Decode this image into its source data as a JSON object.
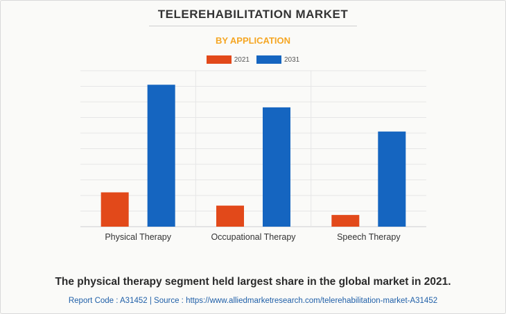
{
  "header": {
    "title": "TELEREHABILITATION MARKET",
    "subtitle": "BY APPLICATION"
  },
  "chart_data": {
    "type": "bar",
    "categories": [
      "Physical Therapy",
      "Occupational Therapy",
      "Speech Therapy"
    ],
    "series": [
      {
        "name": "2021",
        "color": "#e2491a",
        "values": [
          22,
          13.5,
          7.5
        ]
      },
      {
        "name": "2031",
        "color": "#1565c0",
        "values": [
          91,
          76.5,
          61
        ]
      }
    ],
    "ylim": [
      0,
      100
    ],
    "grid": true,
    "legend": "top-center",
    "title": "TELEREHABILITATION MARKET",
    "subtitle": "BY APPLICATION"
  },
  "footer": {
    "statement": "The physical therapy segment held largest share in the global market in 2021.",
    "source": "Report Code : A31452  |  Source : https://www.alliedmarketresearch.com/telerehabilitation-market-A31452"
  }
}
